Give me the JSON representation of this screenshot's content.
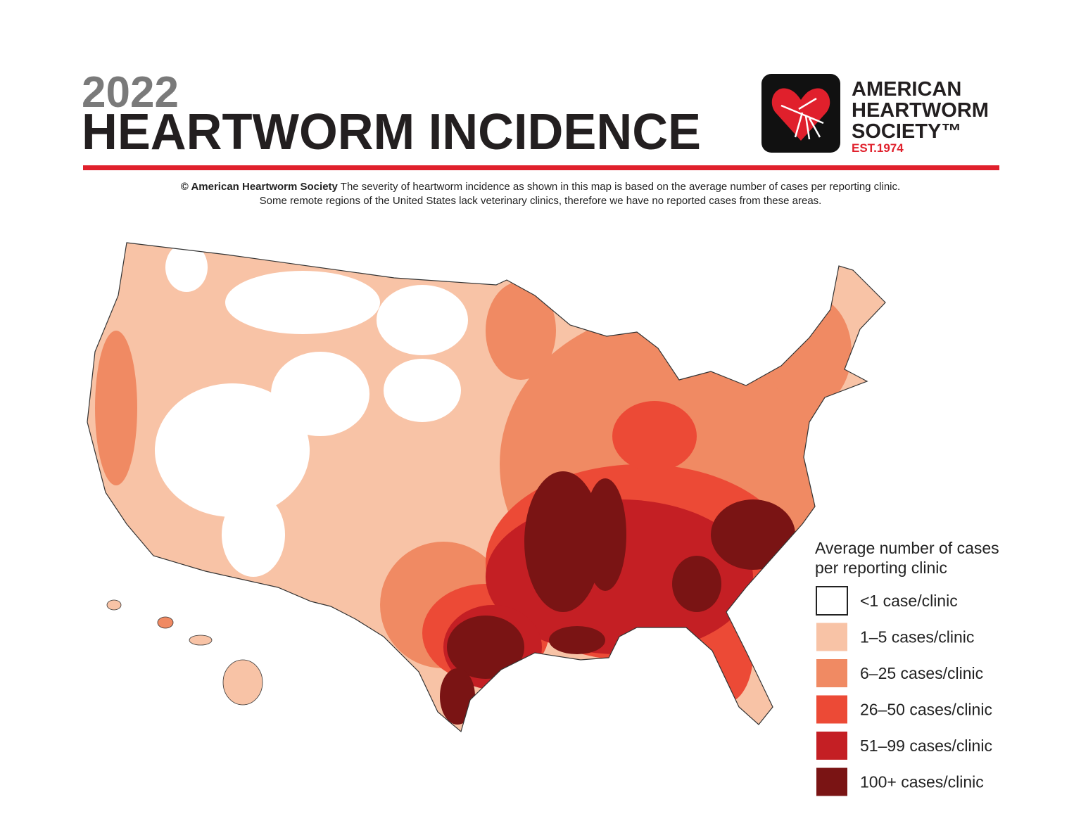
{
  "header": {
    "year": "2022",
    "title": "HEARTWORM INCIDENCE"
  },
  "logo": {
    "lines": [
      "AMERICAN",
      "HEARTWORM",
      "SOCIETY™"
    ],
    "established": "EST.1974"
  },
  "description": {
    "credit": "© American Heartworm Society",
    "lines": [
      "The severity of heartworm incidence as shown in this map is based on the average number of cases per reporting clinic.",
      "Some remote regions of the United States lack veterinary clinics, therefore we have no reported cases from these areas."
    ]
  },
  "legend": {
    "title": [
      "Average number of cases",
      "per reporting clinic"
    ],
    "items": [
      {
        "label": "<1 case/clinic",
        "color": "#ffffff"
      },
      {
        "label": "1–5 cases/clinic",
        "color": "#f8c3a6"
      },
      {
        "label": "6–25 cases/clinic",
        "color": "#f08a63"
      },
      {
        "label": "26–50 cases/clinic",
        "color": "#ec4a36"
      },
      {
        "label": "51–99 cases/clinic",
        "color": "#c41f24"
      },
      {
        "label": "100+ cases/clinic",
        "color": "#7a1414"
      }
    ]
  }
}
